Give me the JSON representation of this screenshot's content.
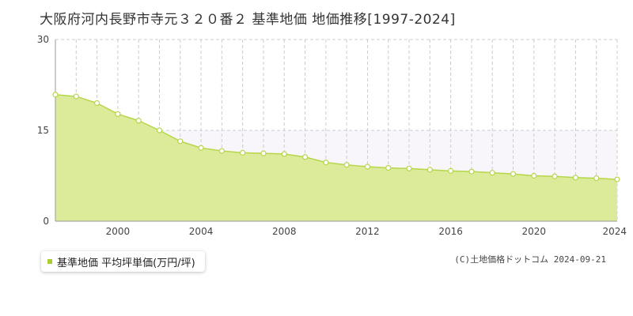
{
  "title": "大阪府河内長野市寺元３２０番２ 基準地価 地価推移[1997-2024]",
  "legend": {
    "label": "基準地価 平均坪単価(万円/坪)",
    "swatch_color": "#aacc33"
  },
  "credit": "(C)土地価格ドットコム 2024-09-21",
  "colors": {
    "fill": "#dbeb99",
    "line": "#b5d64a",
    "point_fill": "#ffffff",
    "grid": "#cccccc",
    "plot_band": "#f8f6fa",
    "axis": "#999999"
  },
  "chart_data": {
    "type": "area",
    "title": "大阪府河内長野市寺元３２０番２ 基準地価 地価推移[1997-2024]",
    "xlabel": "",
    "ylabel": "",
    "x_ticks": [
      "2000",
      "2004",
      "2008",
      "2012",
      "2016",
      "2020",
      "2024"
    ],
    "y_ticks": [
      "0",
      "15",
      "30"
    ],
    "xlim": [
      1997,
      2024
    ],
    "ylim": [
      0,
      30
    ],
    "grid": true,
    "legend_position": "bottom-left",
    "series": [
      {
        "name": "基準地価 平均坪単価(万円/坪)",
        "x": [
          1997,
          1998,
          1999,
          2000,
          2001,
          2002,
          2003,
          2004,
          2005,
          2006,
          2007,
          2008,
          2009,
          2010,
          2011,
          2012,
          2013,
          2014,
          2015,
          2016,
          2017,
          2018,
          2019,
          2020,
          2021,
          2022,
          2023,
          2024
        ],
        "values": [
          20.9,
          20.6,
          19.5,
          17.7,
          16.6,
          15.0,
          13.2,
          12.1,
          11.6,
          11.3,
          11.2,
          11.1,
          10.6,
          9.7,
          9.3,
          9.0,
          8.8,
          8.7,
          8.5,
          8.3,
          8.2,
          8.0,
          7.8,
          7.5,
          7.4,
          7.2,
          7.1,
          6.9
        ]
      }
    ]
  }
}
